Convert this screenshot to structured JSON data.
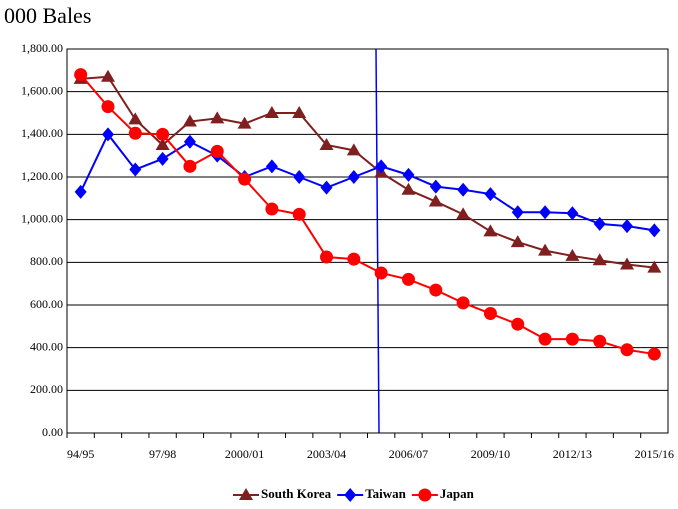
{
  "chart_data": {
    "type": "line",
    "title": "000 Bales",
    "categories": [
      "94/95",
      null,
      null,
      "97/98",
      null,
      null,
      "2000/01",
      null,
      null,
      "2003/04",
      null,
      null,
      "2006/07",
      null,
      null,
      "2009/10",
      null,
      null,
      "2012/13",
      null,
      null,
      "2015/16"
    ],
    "series": [
      {
        "name": "South Korea",
        "color": "#7f1f1f",
        "marker": "triangle",
        "values": [
          1660,
          1670,
          1470,
          1350,
          1460,
          1475,
          1450,
          1500,
          1500,
          1350,
          1325,
          1220,
          1140,
          1085,
          1025,
          945,
          895,
          855,
          830,
          810,
          790,
          775
        ]
      },
      {
        "name": "Taiwan",
        "color": "#0000ff",
        "marker": "diamond",
        "values": [
          1130,
          1400,
          1235,
          1285,
          1365,
          1300,
          1200,
          1250,
          1200,
          1150,
          1200,
          1250,
          1210,
          1155,
          1140,
          1120,
          1035,
          1035,
          1030,
          980,
          970,
          950
        ]
      },
      {
        "name": "Japan",
        "color": "#ff0000",
        "marker": "circle",
        "values": [
          1680,
          1530,
          1405,
          1400,
          1250,
          1320,
          1190,
          1050,
          1025,
          825,
          815,
          750,
          720,
          670,
          610,
          560,
          510,
          440,
          440,
          430,
          390,
          370
        ]
      }
    ],
    "ylim": [
      0,
      1800
    ],
    "yticks": [
      {
        "value": 0,
        "label": "0.00"
      },
      {
        "value": 200,
        "label": "200.00"
      },
      {
        "value": 400,
        "label": "400.00"
      },
      {
        "value": 600,
        "label": "600.00"
      },
      {
        "value": 800,
        "label": "800.00"
      },
      {
        "value": 1000,
        "label": "1,000.00"
      },
      {
        "value": 1200,
        "label": "1,200.00"
      },
      {
        "value": 1400,
        "label": "1,400.00"
      },
      {
        "value": 1600,
        "label": "1,600.00"
      },
      {
        "value": 1800,
        "label": "1,800.00"
      }
    ],
    "grid": true,
    "legend": "bottom"
  }
}
